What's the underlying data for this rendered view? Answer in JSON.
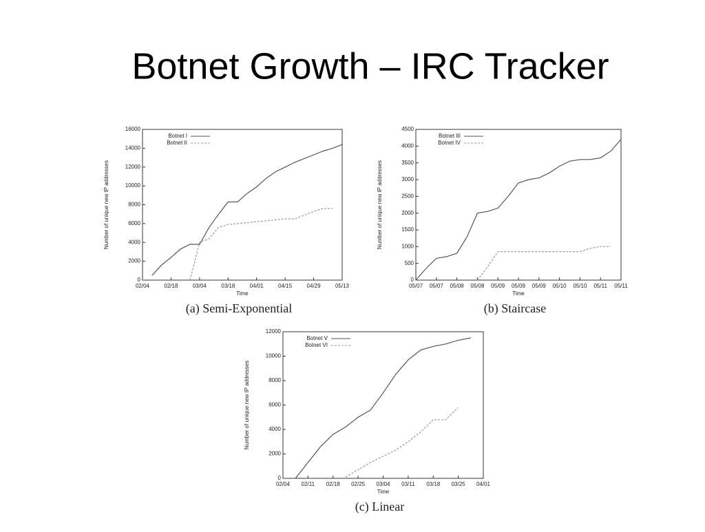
{
  "title": "Botnet Growth – IRC Tracker",
  "chart_data": [
    {
      "type": "line",
      "caption": "(a) Semi-Exponential",
      "xlabel": "Time",
      "ylabel": "Number of unique new IP addresses",
      "categories": [
        "02/04",
        null,
        null,
        "02/18",
        null,
        null,
        "03/04",
        null,
        null,
        "03/18",
        null,
        null,
        "04/01",
        null,
        null,
        "04/15",
        null,
        null,
        "04/29",
        null,
        null,
        "05/13"
      ],
      "ylim": [
        0,
        16000
      ],
      "yticks": [
        0,
        2000,
        4000,
        6000,
        8000,
        10000,
        12000,
        14000,
        16000
      ],
      "series": [
        {
          "name": "Botnet I",
          "color": "#555555",
          "dashed": false,
          "values": [
            null,
            500,
            1600,
            2400,
            3300,
            3800,
            3800,
            5600,
            7000,
            8300,
            8300,
            9200,
            9900,
            10800,
            11500,
            12000,
            12500,
            12900,
            13300,
            13700,
            14000,
            14400
          ]
        },
        {
          "name": "Botnet II",
          "color": "#999999",
          "dashed": true,
          "values": [
            null,
            null,
            null,
            null,
            null,
            0,
            4000,
            4400,
            5600,
            5900,
            6000,
            6100,
            6200,
            6300,
            6400,
            6500,
            6500,
            6900,
            7300,
            7600,
            7600,
            null
          ]
        }
      ]
    },
    {
      "type": "line",
      "caption": "(b) Staircase",
      "xlabel": "Time",
      "ylabel": "Number of unique new IP addresses",
      "categories": [
        "05/07",
        null,
        "05/07",
        null,
        "05/08",
        null,
        "05/08",
        null,
        "05/09",
        null,
        "05/09",
        null,
        "05/09",
        null,
        "05/10",
        null,
        "05/10",
        null,
        "05/11",
        null,
        "05/11"
      ],
      "ylim": [
        0,
        4500
      ],
      "yticks": [
        0,
        500,
        1000,
        1500,
        2000,
        2500,
        3000,
        3500,
        4000,
        4500
      ],
      "series": [
        {
          "name": "Botnet III",
          "color": "#555555",
          "dashed": false,
          "values": [
            0,
            350,
            650,
            700,
            800,
            1300,
            2000,
            2050,
            2150,
            2500,
            2900,
            3000,
            3050,
            3200,
            3400,
            3550,
            3600,
            3600,
            3650,
            3850,
            4200
          ]
        },
        {
          "name": "Botnet IV",
          "color": "#999999",
          "dashed": true,
          "values": [
            null,
            null,
            null,
            null,
            null,
            null,
            0,
            400,
            850,
            850,
            850,
            850,
            850,
            850,
            850,
            850,
            850,
            950,
            1000,
            1000,
            null
          ]
        }
      ]
    },
    {
      "type": "line",
      "caption": "(c) Linear",
      "xlabel": "Time",
      "ylabel": "Number of unique new IP addresses",
      "categories": [
        "02/04",
        null,
        "02/11",
        null,
        "02/18",
        null,
        "02/25",
        null,
        "03/04",
        null,
        "03/11",
        null,
        "03/18",
        null,
        "03/25",
        null,
        "04/01"
      ],
      "ylim": [
        0,
        12000
      ],
      "yticks": [
        0,
        2000,
        4000,
        6000,
        8000,
        10000,
        12000
      ],
      "series": [
        {
          "name": "Botnet V",
          "color": "#555555",
          "dashed": false,
          "values": [
            null,
            0,
            1300,
            2600,
            3600,
            4200,
            5000,
            5600,
            7000,
            8500,
            9700,
            10500,
            10800,
            11000,
            11300,
            11500,
            null
          ]
        },
        {
          "name": "Botnet VI",
          "color": "#999999",
          "dashed": true,
          "values": [
            null,
            null,
            null,
            null,
            null,
            100,
            700,
            1300,
            1800,
            2300,
            3000,
            3800,
            4800,
            4800,
            5800,
            null,
            null
          ]
        }
      ]
    }
  ]
}
